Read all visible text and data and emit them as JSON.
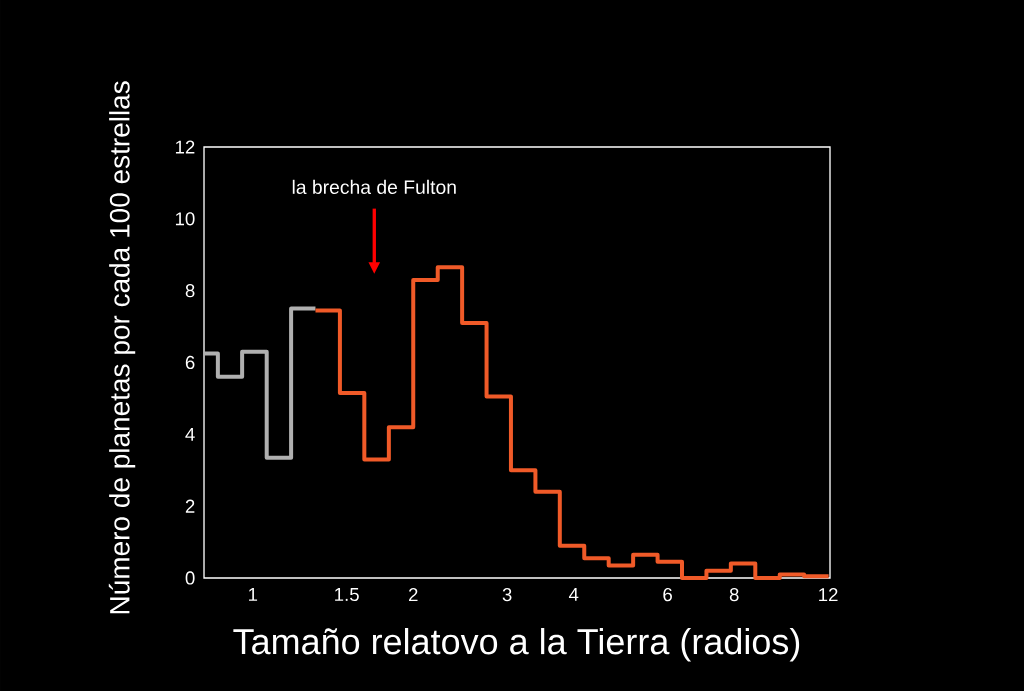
{
  "chart_data": {
    "type": "step",
    "xlabel": "Tamaño relatovo a la Tierra (radios)",
    "ylabel": "Número de planetas por cada 100 estrellas",
    "annotations": [
      "la brecha de Fulton"
    ],
    "series": [
      {
        "color": "#b0b0b0",
        "x": [
          0.81,
          0.86,
          0.955,
          1.062,
          1.18,
          1.311
        ],
        "values": [
          6.25,
          5.6,
          6.3,
          3.35,
          7.5,
          7.5
        ]
      },
      {
        "color": "#f05a28",
        "x": [
          1.311,
          1.457,
          1.619,
          1.8,
          2.0,
          2.223,
          2.47,
          2.745,
          3.05,
          3.39,
          3.767,
          4.186,
          4.652,
          5.17,
          5.746,
          6.385,
          7.096,
          7.886,
          8.763,
          9.739,
          10.82,
          12.03
        ],
        "values": [
          7.45,
          5.15,
          3.3,
          4.2,
          8.3,
          8.65,
          7.1,
          5.05,
          3.0,
          2.4,
          0.9,
          0.55,
          0.35,
          0.65,
          0.45,
          0,
          0.2,
          0.4,
          0,
          0.1,
          0.05,
          0.05
        ]
      }
    ],
    "log": "x",
    "xlim": [
      0.81,
      12.1
    ],
    "xticks": [
      1,
      1.5,
      2,
      3,
      4,
      6,
      8,
      12
    ],
    "ylim": [
      0,
      12
    ],
    "yticks": [
      0,
      2,
      4,
      6,
      8,
      10,
      12
    ],
    "grid": false
  }
}
